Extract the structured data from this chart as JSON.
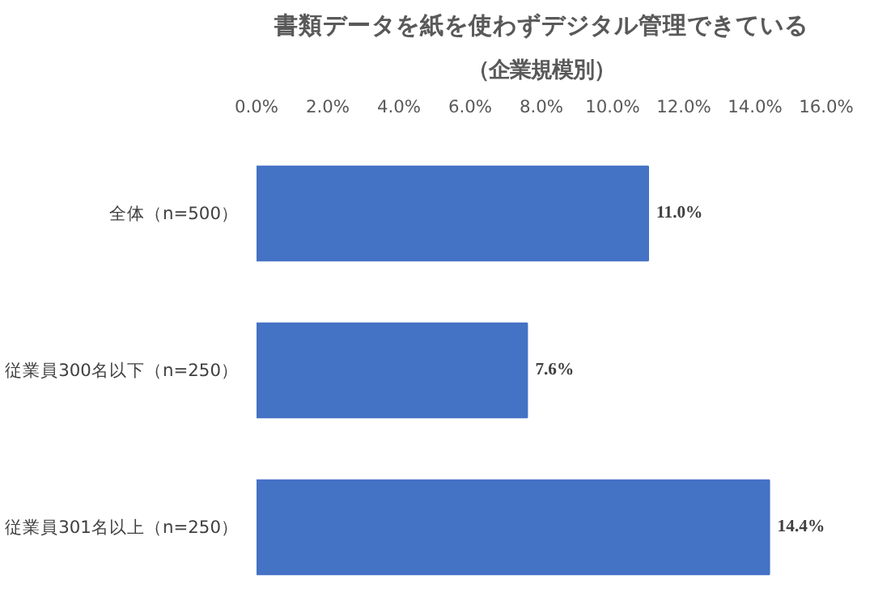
{
  "chart_data": {
    "type": "bar",
    "orientation": "horizontal",
    "title": "書類データを紙を使わずデジタル管理できている",
    "subtitle": "（企業規模別）",
    "categories": [
      "全体（n=500）",
      "従業員300名以下（n=250）",
      "従業員301名以上（n=250）"
    ],
    "values": [
      11.0,
      7.6,
      14.4
    ],
    "value_labels": [
      "11.0%",
      "7.6%",
      "14.4%"
    ],
    "color": "#4472c4",
    "xlim": [
      0,
      16
    ],
    "xticks": [
      {
        "value": 0,
        "label": "0.0%"
      },
      {
        "value": 2,
        "label": "2.0%"
      },
      {
        "value": 4,
        "label": "4.0%"
      },
      {
        "value": 6,
        "label": "6.0%"
      },
      {
        "value": 8,
        "label": "8.0%"
      },
      {
        "value": 10,
        "label": "10.0%"
      },
      {
        "value": 12,
        "label": "12.0%"
      },
      {
        "value": 14,
        "label": "14.0%"
      },
      {
        "value": 16,
        "label": "16.0%"
      }
    ],
    "grid": false
  }
}
